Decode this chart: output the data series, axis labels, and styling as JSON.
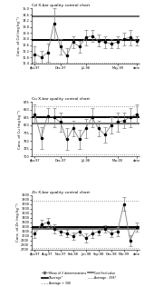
{
  "cd_title": "Cd X-bar quality control chart",
  "cd_ylabel": "Conc. of Cd (mg kg⁻¹)",
  "cd_xlabels": [
    "Apr-97",
    "Dec-97",
    "Jul-98",
    "May-99",
    "date"
  ],
  "cd_xtick_pos": [
    0,
    4,
    8,
    13,
    16
  ],
  "cd_ylim": [
    11.4,
    15.0
  ],
  "cd_yticks": [
    11.4,
    11.8,
    12.2,
    12.6,
    13.0,
    13.4,
    13.8,
    14.2,
    14.6,
    15.0
  ],
  "cd_average": 12.95,
  "cd_certified": 14.5,
  "cd_avg_plus_3se": 14.55,
  "cd_avg_minus_3se": 11.45,
  "cd_x": [
    0,
    1,
    2,
    3,
    4,
    5,
    6,
    7,
    8,
    9,
    10,
    11,
    12,
    13,
    14,
    15,
    16
  ],
  "cd_y": [
    12.0,
    11.8,
    12.1,
    14.0,
    12.5,
    11.9,
    12.8,
    12.5,
    13.1,
    13.2,
    12.9,
    12.8,
    12.7,
    12.8,
    13.0,
    13.1,
    12.9
  ],
  "cd_err": [
    0.5,
    0.4,
    0.6,
    1.0,
    0.5,
    0.5,
    0.4,
    0.4,
    0.5,
    0.4,
    0.4,
    0.4,
    0.3,
    0.4,
    0.4,
    0.5,
    0.3
  ],
  "cu_title": "Cu X-bar quality control chart",
  "cu_ylabel": "Conc. of Cu (mg kg⁻¹)",
  "cu_xlabels": [
    "Apr-97",
    "Dec-97",
    "Jul-98",
    "Mar-00",
    "date"
  ],
  "cu_xtick_pos": [
    0,
    4,
    8,
    13,
    16
  ],
  "cu_ylim": [
    700,
    875
  ],
  "cu_yticks": [
    700,
    725,
    750,
    775,
    800,
    825,
    850,
    875
  ],
  "cu_average": 825,
  "cu_certified": 805,
  "cu_avg_plus_3se": 862,
  "cu_avg_minus_3se": 708,
  "cu_x": [
    0,
    1,
    2,
    3,
    4,
    5,
    6,
    7,
    8,
    9,
    10,
    11,
    12,
    13,
    14,
    15,
    16
  ],
  "cu_y": [
    835,
    760,
    830,
    825,
    810,
    755,
    790,
    755,
    790,
    825,
    790,
    770,
    800,
    810,
    815,
    825,
    835
  ],
  "cu_err": [
    30,
    35,
    25,
    30,
    30,
    35,
    25,
    30,
    30,
    30,
    25,
    25,
    25,
    30,
    25,
    30,
    30
  ],
  "zn_title": "Zn X-bar quality control chart",
  "zn_ylabel": "Conc. of Zn (mg kg⁻¹)",
  "zn_xlabels": [
    "Apr-97",
    "Aug-97",
    "Nov-97",
    "Feb-98",
    "Jun-98",
    "Sep-98",
    "Dec-98",
    "Mar-99",
    "date"
  ],
  "zn_xtick_pos": [
    0,
    2,
    4,
    6,
    8,
    10,
    12,
    14,
    16
  ],
  "zn_ylim": [
    2700,
    3900
  ],
  "zn_yticks": [
    2700,
    2800,
    2900,
    3000,
    3100,
    3200,
    3300,
    3400,
    3500,
    3600,
    3700,
    3800,
    3900
  ],
  "zn_average": 3200,
  "zn_certified": 3150,
  "zn_avg_plus_3se": 3780,
  "zn_avg_minus_3se": 2740,
  "zn_x": [
    0,
    1,
    2,
    3,
    4,
    5,
    6,
    7,
    8,
    9,
    10,
    11,
    12,
    13,
    14,
    15,
    16
  ],
  "zn_y": [
    3050,
    3250,
    3300,
    3150,
    3100,
    3050,
    3000,
    3100,
    2950,
    3050,
    3100,
    3150,
    3050,
    3100,
    3700,
    2900,
    3200
  ],
  "zn_err": [
    100,
    100,
    100,
    100,
    80,
    80,
    80,
    80,
    100,
    100,
    80,
    80,
    80,
    100,
    150,
    120,
    100
  ],
  "legend_items": [
    "Mean of 3 determinations",
    "Average + 3SE",
    "Average - 3SE*",
    "\"Average\"",
    "Certified value"
  ]
}
